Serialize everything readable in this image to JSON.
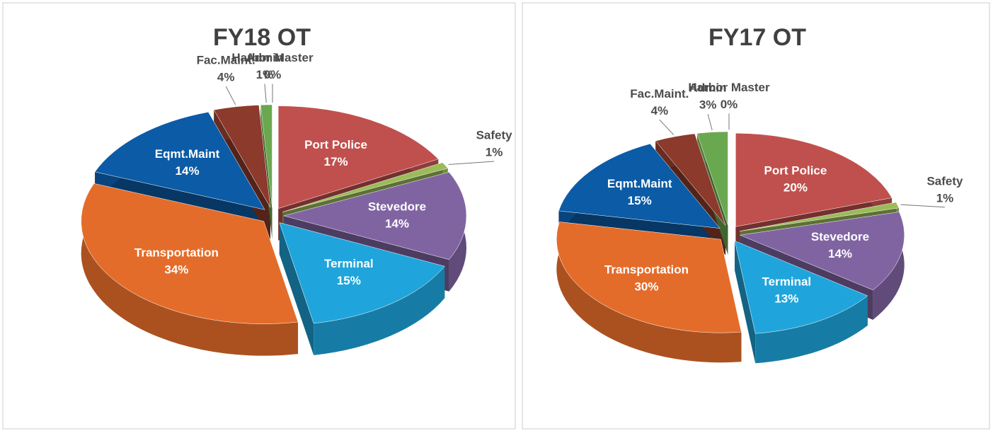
{
  "chart_data": [
    {
      "type": "pie3d",
      "title": "FY18 OT",
      "categories": [
        "Port Police",
        "Safety",
        "Stevedore",
        "Terminal",
        "Transportation",
        "Eqmt.Maint",
        "Fac.Maint.",
        "Admin",
        "Harbor Master"
      ],
      "values": [
        17,
        1,
        14,
        15,
        34,
        14,
        4,
        1,
        0
      ],
      "value_labels": [
        "17%",
        "1%",
        "14%",
        "15%",
        "34%",
        "14%",
        "4%",
        "1%",
        "0%"
      ],
      "colors": [
        "#c0504d",
        "#9bbb59",
        "#8064a2",
        "#1fa5dc",
        "#e46c2a",
        "#0b5ba6",
        "#8b3a2b",
        "#6aa84f",
        "#2e8bd8"
      ]
    },
    {
      "type": "pie3d",
      "title": "FY17 OT",
      "categories": [
        "Port Police",
        "Safety",
        "Stevedore",
        "Terminal",
        "Transportation",
        "Eqmt.Maint",
        "Fac.Maint.",
        "Admin",
        "Harbor Master"
      ],
      "values": [
        20,
        1,
        14,
        13,
        30,
        15,
        4,
        3,
        0
      ],
      "value_labels": [
        "20%",
        "1%",
        "14%",
        "13%",
        "30%",
        "15%",
        "4%",
        "3%",
        "0%"
      ],
      "colors": [
        "#c0504d",
        "#9bbb59",
        "#8064a2",
        "#1fa5dc",
        "#e46c2a",
        "#0b5ba6",
        "#8b3a2b",
        "#6aa84f",
        "#2e8bd8"
      ]
    }
  ]
}
